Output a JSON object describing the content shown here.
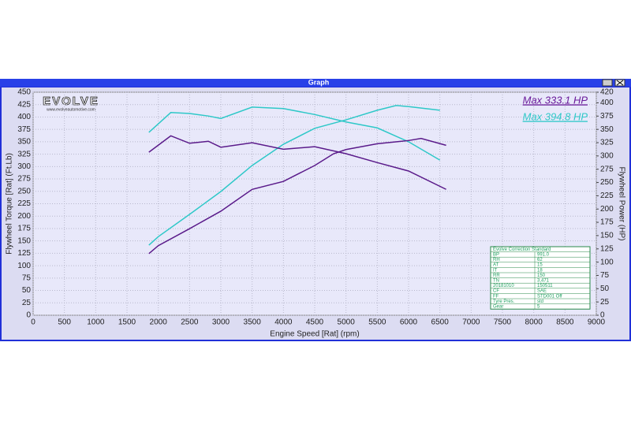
{
  "window_title": "Graph",
  "logo": {
    "brand": "EVOLVE",
    "url": "www.evolveautomotive.com"
  },
  "chart_data": {
    "type": "line",
    "xlabel": "Engine Speed [Rat] (rpm)",
    "ylabel": "Flywheel Torque [Rat] (Ft.Lb)",
    "y2label": "Flywheel Power (HP)",
    "xlim": [
      0,
      9000
    ],
    "xticks": [
      0,
      500,
      1000,
      1500,
      2000,
      2500,
      3000,
      3500,
      4000,
      4500,
      5000,
      5500,
      6000,
      6500,
      7000,
      7500,
      8000,
      8500,
      9000
    ],
    "ylim": [
      0,
      450
    ],
    "yticks": [
      0,
      25,
      50,
      75,
      100,
      125,
      150,
      175,
      200,
      225,
      250,
      275,
      300,
      325,
      350,
      375,
      400,
      425,
      450
    ],
    "y2lim": [
      0,
      420
    ],
    "y2ticks": [
      0,
      25,
      50,
      75,
      100,
      125,
      150,
      175,
      200,
      225,
      250,
      275,
      300,
      325,
      350,
      375,
      400,
      420
    ],
    "grid": true,
    "series": [
      {
        "color": "#2ec8c8",
        "axis": "y",
        "x": [
          1850,
          2200,
          2500,
          2800,
          3000,
          3500,
          4000,
          4500,
          5000,
          5500,
          6000,
          6500
        ],
        "values": [
          369,
          409,
          407,
          402,
          397,
          420,
          417,
          405,
          390,
          378,
          350,
          313
        ]
      },
      {
        "color": "#2ec8c8",
        "axis": "y2",
        "x": [
          1850,
          2000,
          2500,
          3000,
          3500,
          4000,
          4500,
          5000,
          5500,
          5800,
          6000,
          6500
        ],
        "values": [
          132,
          148,
          190,
          233,
          282,
          322,
          352,
          368,
          386,
          395,
          393,
          386
        ]
      },
      {
        "color": "#5a1a8a",
        "axis": "y",
        "x": [
          1850,
          2200,
          2500,
          2800,
          3000,
          3500,
          4000,
          4500,
          5000,
          5500,
          6000,
          6600
        ],
        "values": [
          329,
          362,
          347,
          351,
          339,
          348,
          335,
          340,
          326,
          308,
          291,
          254
        ]
      },
      {
        "color": "#5a1a8a",
        "axis": "y2",
        "x": [
          1850,
          2000,
          2500,
          3000,
          3500,
          4000,
          4500,
          4800,
          5000,
          5500,
          6000,
          6200,
          6600
        ],
        "values": [
          116,
          131,
          163,
          196,
          237,
          252,
          282,
          304,
          312,
          323,
          329,
          333,
          320
        ]
      }
    ],
    "annotations": [
      {
        "text": "Max 333.1 HP",
        "color": "#6a1a9a"
      },
      {
        "text": "Max 394.8 HP",
        "color": "#2ec8c8"
      }
    ]
  },
  "info_table": {
    "title": "Evolve Correction Standard",
    "rows": [
      [
        "BP",
        "991.0"
      ],
      [
        "RH",
        "62"
      ],
      [
        "AT",
        "15"
      ],
      [
        "IT",
        "18"
      ],
      [
        "RR",
        "150"
      ],
      [
        "TN",
        "3,471"
      ],
      [
        "20181010",
        "150511"
      ],
      [
        "CF",
        "SAE"
      ],
      [
        "FF",
        "STD001 Off"
      ],
      [
        "Tyre Pres.",
        "std"
      ],
      [
        "Gear",
        "5"
      ]
    ]
  }
}
